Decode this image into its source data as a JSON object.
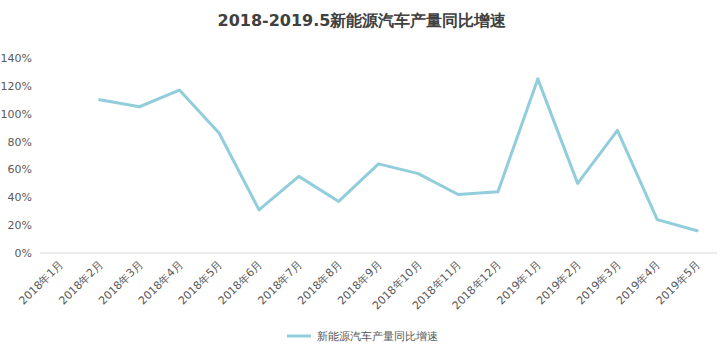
{
  "chart_data": {
    "type": "line",
    "title": "2018-2019.5新能源汽车产量同比增速",
    "categories": [
      "2018年1月",
      "2018年2月",
      "2018年3月",
      "2018年4月",
      "2018年5月",
      "2018年6月",
      "2018年7月",
      "2018年8月",
      "2018年9月",
      "2018年10月",
      "2018年11月",
      "2018年12月",
      "2019年1月",
      "2019年2月",
      "2019年3月",
      "2019年4月",
      "2019年5月"
    ],
    "series": [
      {
        "name": "新能源汽车产量同比增速",
        "color": "#92cddc",
        "values": [
          null,
          110,
          105,
          117,
          86,
          31,
          55,
          37,
          64,
          57,
          42,
          44,
          125,
          50,
          88,
          24,
          16
        ]
      }
    ],
    "ylim": [
      0,
      140
    ],
    "yticks": [
      {
        "value": 0,
        "label": "0%"
      },
      {
        "value": 20,
        "label": "20%"
      },
      {
        "value": 40,
        "label": "40%"
      },
      {
        "value": 60,
        "label": "60%"
      },
      {
        "value": 80,
        "label": "80%"
      },
      {
        "value": 100,
        "label": "100%"
      },
      {
        "value": 120,
        "label": "120%"
      },
      {
        "value": 140,
        "label": "140%"
      }
    ],
    "grid": false,
    "legend": "bottom"
  }
}
